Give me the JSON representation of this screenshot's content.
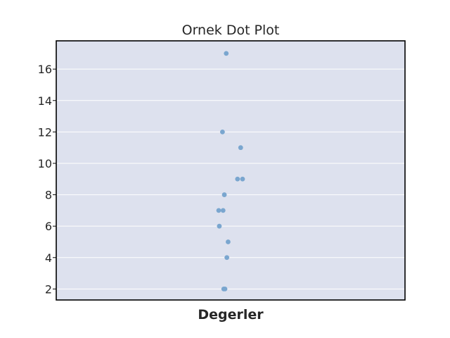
{
  "chart_data": {
    "type": "scatter",
    "title": "Ornek Dot Plot",
    "xlabel": "Degerler",
    "ylabel": "",
    "ylim": [
      1.3,
      17.8
    ],
    "yticks": [
      2,
      4,
      6,
      8,
      10,
      12,
      14,
      16
    ],
    "grid": true,
    "legend": "none",
    "colors": {
      "plot_bg": "#dde1ee",
      "grid": "#ffffff",
      "point": "#7aa6cf",
      "frame": "#000000",
      "text": "#262626"
    },
    "values": [
      17,
      12,
      11,
      9,
      9,
      8,
      7,
      7,
      6,
      5,
      4,
      2,
      2
    ],
    "jitter": [
      -0.07,
      -0.13,
      0.16,
      0.11,
      0.19,
      -0.1,
      -0.19,
      -0.12,
      -0.18,
      -0.04,
      -0.06,
      -0.11,
      -0.09
    ]
  }
}
